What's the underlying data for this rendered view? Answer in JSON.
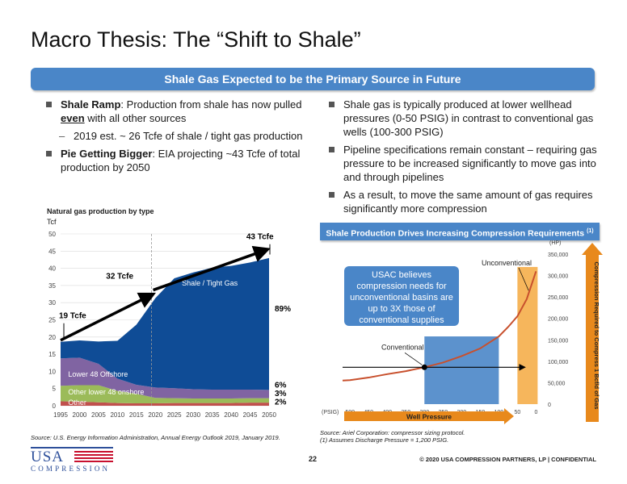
{
  "title": "Macro Thesis: The “Shift to Shale”",
  "banner": "Shale Gas Expected to be the Primary Source in Future",
  "left_bullets": {
    "b1_bold": "Shale Ramp",
    "b1_text": ": Production from shale has now pulled",
    "b1_underline": "even",
    "b1_text2": " with all other sources",
    "sub1": "2019 est. ~ 26 Tcfe of shale / tight gas production",
    "b2_bold": "Pie Getting Bigger",
    "b2_text": ": EIA projecting ~43 Tcfe of total production by 2050"
  },
  "right_bullets": [
    "Shale gas is typically produced at lower wellhead pressures (0-50 PSIG) in contrast to conventional gas wells (100-300 PSIG)",
    "Pipeline specifications remain constant – requiring gas pressure to be increased significantly to move gas into and through pipelines",
    "As a result, to move the same amount of gas requires significantly more compression"
  ],
  "chart_data": [
    {
      "type": "area",
      "title": "Natural gas production by type",
      "ylabel": "Tcf",
      "x": [
        1995,
        2000,
        2005,
        2010,
        2015,
        2020,
        2025,
        2030,
        2035,
        2040,
        2045,
        2050
      ],
      "xlim": [
        1995,
        2050
      ],
      "ylim": [
        0,
        50
      ],
      "yticks": [
        0,
        5,
        10,
        15,
        20,
        25,
        30,
        35,
        40,
        45,
        50
      ],
      "projection_start": 2019,
      "series": [
        {
          "name": "Other",
          "color": "#c0504d",
          "values": [
            1.3,
            1.2,
            1.0,
            0.8,
            0.7,
            0.7,
            0.8,
            0.8,
            0.8,
            0.8,
            0.9,
            0.9
          ]
        },
        {
          "name": "Other lower 48 onshore",
          "color": "#9bbb59",
          "values": [
            4.5,
            4.8,
            5.0,
            3.5,
            2.8,
            1.6,
            1.4,
            1.3,
            1.3,
            1.3,
            1.3,
            1.3
          ]
        },
        {
          "name": "Lower 48 Offshore",
          "color": "#8064a2",
          "values": [
            8.0,
            8.0,
            6.2,
            3.6,
            2.6,
            3.0,
            2.9,
            2.7,
            2.6,
            2.6,
            2.5,
            2.4
          ]
        },
        {
          "name": "Shale / Tight Gas",
          "color": "#0f4c96",
          "values": [
            4.8,
            5.0,
            6.5,
            11.0,
            17.5,
            26.0,
            32.0,
            34.0,
            35.5,
            36.0,
            37.0,
            38.4
          ]
        }
      ],
      "annotations": [
        "19 Tcfe",
        "32 Tcfe",
        "43 Tcfe"
      ],
      "share_labels": [
        "89%",
        "6%",
        "3%",
        "2%"
      ]
    },
    {
      "type": "line",
      "title": "Shale Production Drives Increasing Compression Requirements",
      "title_sup": "(1)",
      "x_unit": "(PSIG)",
      "y_unit": "(HP)",
      "xlabel": "Well Pressure",
      "ylabel": "Compression Required to Compress 1 Bcf/d of Gas",
      "xticks": [
        500,
        450,
        400,
        350,
        300,
        250,
        200,
        150,
        100,
        50,
        0
      ],
      "xlim": [
        520,
        -10
      ],
      "ylim": [
        0,
        350000
      ],
      "yticks": [
        "0",
        "50,000",
        "100,000",
        "150,000",
        "200,000",
        "250,000",
        "300,000",
        "350,000"
      ],
      "x": [
        520,
        500,
        450,
        400,
        350,
        300,
        250,
        200,
        150,
        100,
        75,
        50,
        25,
        0
      ],
      "values": [
        55000,
        56000,
        62000,
        70000,
        77000,
        86000,
        97000,
        112000,
        130000,
        158000,
        180000,
        205000,
        245000,
        310000
      ],
      "labels": {
        "conventional": "Conventional",
        "unconventional": "Unconventional"
      },
      "callout": [
        "USAC believes",
        "compression needs for",
        "unconventional basins are",
        "up to 3X those of",
        "conventional supplies"
      ]
    }
  ],
  "source_left": "Source: U.S. Energy Information Administration, Annual Energy Outlook 2019, January 2019.",
  "source_right_1": "Source: Ariel Corporation: compressor sizing protocol.",
  "source_right_2": "(1) Assumes Discharge Pressure = 1,200 PSIG.",
  "logo": {
    "top": "USA",
    "bottom": "COMPRESSION"
  },
  "page_number": "22",
  "footer": "© 2020 USA COMPRESSION PARTNERS, LP    |    CONFIDENTIAL",
  "colors": {
    "brand_blue": "#4a86c8",
    "shale": "#0f4c96",
    "arrow_orange": "#e8891c",
    "curve": "#c8502d"
  }
}
